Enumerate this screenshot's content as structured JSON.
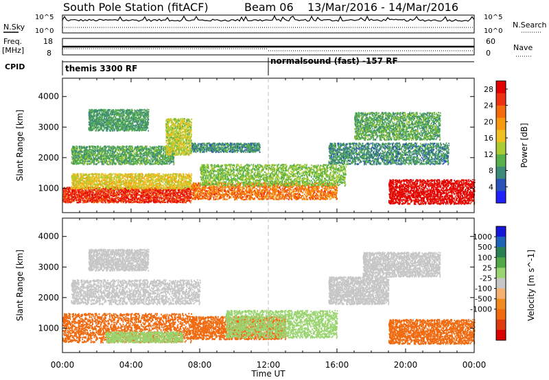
{
  "header": {
    "title": "South Pole Station (fitACF)",
    "beam": "Beam 06",
    "date_range": "13/Mar/2016 - 14/Mar/2016"
  },
  "summary_panels": {
    "nsky_label": "N.Sky",
    "nsearch_label": "N.Search",
    "freq_label_1": "Freq.",
    "freq_label_2": "[MHz]",
    "nave_label": "Nave",
    "cpid_label": "CPID",
    "noise_ticks_left": [
      "10^5",
      "10^0"
    ],
    "noise_ticks_right": [
      "10^5",
      "10^0"
    ],
    "freq_ticks": [
      "18",
      "8"
    ],
    "nave_ticks": [
      "60",
      "0"
    ],
    "cpid_segments": [
      {
        "label": "themis 3300 RF",
        "start": 0
      },
      {
        "label": "normalsound (fast) -157 RF",
        "start": 12
      }
    ]
  },
  "colors": {
    "power": [
      "#1f1fff",
      "#2952b8",
      "#3d8a78",
      "#58b04a",
      "#aacc33",
      "#f0c020",
      "#f79a10",
      "#f56a0a",
      "#ef3010",
      "#e30000"
    ],
    "velocity": [
      "#1616d8",
      "#1f63b8",
      "#2a7f55",
      "#50a848",
      "#9ad470",
      "#c6c6c6",
      "#f5b070",
      "#f08a20",
      "#f06a10",
      "#e03a10",
      "#d90000"
    ]
  },
  "chart_data": [
    {
      "type": "heatmap",
      "name": "Power",
      "xlabel": "Time UT",
      "ylabel": "Slant Range [km]",
      "xlim": [
        0,
        24
      ],
      "ylim": [
        200,
        4600
      ],
      "x_ticks": [
        "00:00",
        "04:00",
        "08:00",
        "12:00",
        "16:00",
        "20:00",
        "00:00"
      ],
      "y_ticks": [
        "1000",
        "2000",
        "3000",
        "4000"
      ],
      "colorbar": {
        "label": "Power [dB]",
        "ticks": [
          "4",
          "8",
          "12",
          "16",
          "20",
          "24",
          "28"
        ],
        "range": [
          0,
          30
        ]
      },
      "scatter_regions": [
        {
          "t0": 0.0,
          "t1": 7.5,
          "r0": 550,
          "r1": 1050,
          "value": 26
        },
        {
          "t0": 0.5,
          "t1": 7.5,
          "r0": 1000,
          "r1": 1500,
          "value": 16
        },
        {
          "t0": 7.5,
          "t1": 16.0,
          "r0": 650,
          "r1": 1200,
          "value": 22
        },
        {
          "t0": 8.0,
          "t1": 16.5,
          "r0": 1100,
          "r1": 1800,
          "value": 12
        },
        {
          "t0": 0.5,
          "t1": 6.5,
          "r0": 1800,
          "r1": 2400,
          "value": 10
        },
        {
          "t0": 1.5,
          "t1": 5.0,
          "r0": 2900,
          "r1": 3600,
          "value": 9
        },
        {
          "t0": 6.0,
          "t1": 7.5,
          "r0": 2100,
          "r1": 3300,
          "value": 14
        },
        {
          "t0": 7.5,
          "t1": 11.5,
          "r0": 2200,
          "r1": 2500,
          "value": 8
        },
        {
          "t0": 15.5,
          "t1": 22.5,
          "r0": 1800,
          "r1": 2500,
          "value": 8
        },
        {
          "t0": 17.0,
          "t1": 22.0,
          "r0": 2600,
          "r1": 3500,
          "value": 10
        },
        {
          "t0": 19.0,
          "t1": 24.0,
          "r0": 500,
          "r1": 1300,
          "value": 29
        }
      ]
    },
    {
      "type": "heatmap",
      "name": "Velocity",
      "xlabel": "Time UT",
      "ylabel": "Slant Range [km]",
      "xlim": [
        0,
        24
      ],
      "ylim": [
        200,
        4600
      ],
      "x_ticks": [
        "00:00",
        "04:00",
        "08:00",
        "12:00",
        "16:00",
        "20:00",
        "00:00"
      ],
      "y_ticks": [
        "1000",
        "2000",
        "3000",
        "4000"
      ],
      "colorbar": {
        "label": "Velocity [m s^-1]",
        "ticks": [
          "1000",
          "500",
          "100",
          "25",
          "-25",
          "-100",
          "-500",
          "-1000"
        ],
        "range": [
          -1000,
          1000
        ]
      },
      "scatter_regions": [
        {
          "t0": 0.0,
          "t1": 7.5,
          "r0": 550,
          "r1": 1500,
          "value": -450
        },
        {
          "t0": 2.5,
          "t1": 7.0,
          "r0": 550,
          "r1": 900,
          "value": 50
        },
        {
          "t0": 7.5,
          "t1": 13.0,
          "r0": 650,
          "r1": 1400,
          "value": -450
        },
        {
          "t0": 9.5,
          "t1": 16.0,
          "r0": 700,
          "r1": 1600,
          "value": 80
        },
        {
          "t0": 0.5,
          "t1": 8.0,
          "r0": 1800,
          "r1": 2600,
          "value": 0
        },
        {
          "t0": 1.5,
          "t1": 5.0,
          "r0": 2900,
          "r1": 3600,
          "value": 0
        },
        {
          "t0": 15.5,
          "t1": 19.0,
          "r0": 1800,
          "r1": 2700,
          "value": 0
        },
        {
          "t0": 17.5,
          "t1": 22.0,
          "r0": 2700,
          "r1": 3500,
          "value": 0
        },
        {
          "t0": 19.0,
          "t1": 24.0,
          "r0": 500,
          "r1": 1300,
          "value": -450
        }
      ]
    }
  ]
}
